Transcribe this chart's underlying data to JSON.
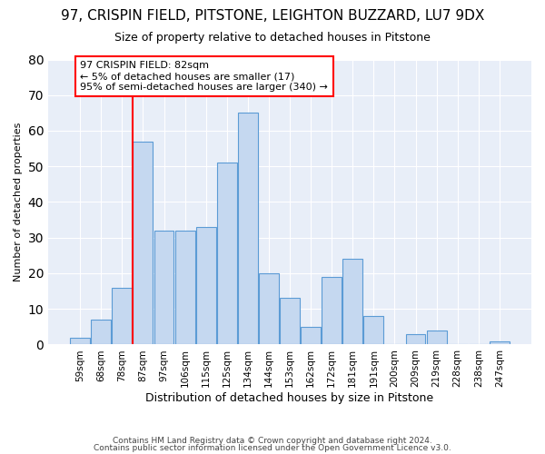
{
  "title1": "97, CRISPIN FIELD, PITSTONE, LEIGHTON BUZZARD, LU7 9DX",
  "title2": "Size of property relative to detached houses in Pitstone",
  "xlabel": "Distribution of detached houses by size in Pitstone",
  "ylabel": "Number of detached properties",
  "categories": [
    "59sqm",
    "68sqm",
    "78sqm",
    "87sqm",
    "97sqm",
    "106sqm",
    "115sqm",
    "125sqm",
    "134sqm",
    "144sqm",
    "153sqm",
    "162sqm",
    "172sqm",
    "181sqm",
    "191sqm",
    "200sqm",
    "209sqm",
    "219sqm",
    "228sqm",
    "238sqm",
    "247sqm"
  ],
  "values": [
    2,
    7,
    16,
    57,
    32,
    32,
    33,
    51,
    65,
    20,
    13,
    5,
    19,
    24,
    8,
    0,
    3,
    4,
    0,
    0,
    1
  ],
  "bar_color": "#c5d8f0",
  "bar_edge_color": "#5b9bd5",
  "vline_x_idx": 2.5,
  "vline_color": "red",
  "annotation_line1": "97 CRISPIN FIELD: 82sqm",
  "annotation_line2": "← 5% of detached houses are smaller (17)",
  "annotation_line3": "95% of semi-detached houses are larger (340) →",
  "annotation_box_color": "white",
  "annotation_box_edge": "red",
  "ylim": [
    0,
    80
  ],
  "yticks": [
    0,
    10,
    20,
    30,
    40,
    50,
    60,
    70,
    80
  ],
  "footer1": "Contains HM Land Registry data © Crown copyright and database right 2024.",
  "footer2": "Contains public sector information licensed under the Open Government Licence v3.0.",
  "bg_color": "#ffffff",
  "plot_bg_color": "#e8eef8",
  "grid_color": "#ffffff",
  "title1_fontsize": 11,
  "title2_fontsize": 9,
  "xlabel_fontsize": 9,
  "ylabel_fontsize": 8,
  "tick_fontsize": 7.5,
  "footer_fontsize": 6.5,
  "annotation_fontsize": 8
}
